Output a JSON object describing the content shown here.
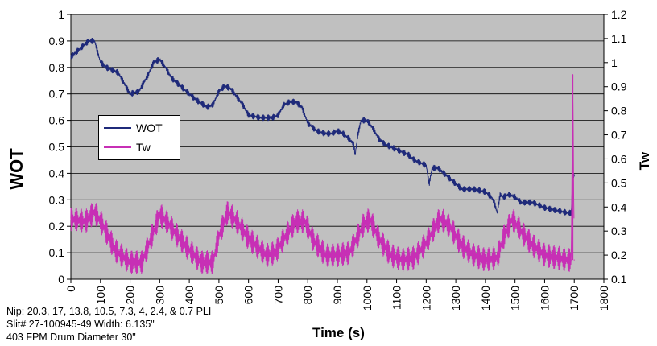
{
  "chart_data": {
    "type": "line",
    "title": "",
    "xlabel": "Time (s)",
    "ylabel": "WOT",
    "y2label": "Tw",
    "xlim": [
      0,
      1800
    ],
    "ylim": [
      0,
      1
    ],
    "y2lim": [
      0.1,
      1.2
    ],
    "x_ticks": [
      "0",
      "100",
      "200",
      "300",
      "400",
      "500",
      "600",
      "700",
      "800",
      "900",
      "1000",
      "1100",
      "1200",
      "1300",
      "1400",
      "1500",
      "1600",
      "1700",
      "1800"
    ],
    "y_ticks": [
      "0",
      "0.1",
      "0.2",
      "0.3",
      "0.4",
      "0.5",
      "0.6",
      "0.7",
      "0.8",
      "0.9",
      "1"
    ],
    "y2_ticks": [
      "0.1",
      "0.2",
      "0.3",
      "0.4",
      "0.5",
      "0.6",
      "0.7",
      "0.8",
      "0.9",
      "1",
      "1.1",
      "1.2"
    ],
    "grid": true,
    "legend_position": "left-middle",
    "series": [
      {
        "name": "WOT",
        "axis": "left",
        "color": "#1f2a7a",
        "x": [
          0,
          20,
          40,
          60,
          80,
          100,
          120,
          140,
          160,
          180,
          200,
          230,
          260,
          280,
          300,
          320,
          340,
          360,
          380,
          420,
          460,
          480,
          500,
          520,
          540,
          560,
          580,
          600,
          640,
          680,
          700,
          720,
          740,
          760,
          780,
          800,
          830,
          860,
          880,
          900,
          920,
          940,
          955,
          960,
          970,
          980,
          1000,
          1020,
          1040,
          1060,
          1080,
          1100,
          1140,
          1160,
          1180,
          1200,
          1210,
          1220,
          1240,
          1280,
          1300,
          1320,
          1360,
          1400,
          1420,
          1430,
          1440,
          1450,
          1460,
          1480,
          1500,
          1520,
          1560,
          1600,
          1640,
          1680,
          1690,
          1695,
          1700
        ],
        "y": [
          0.84,
          0.86,
          0.88,
          0.9,
          0.9,
          0.82,
          0.8,
          0.79,
          0.78,
          0.74,
          0.7,
          0.71,
          0.77,
          0.82,
          0.83,
          0.8,
          0.76,
          0.74,
          0.72,
          0.68,
          0.65,
          0.66,
          0.71,
          0.73,
          0.72,
          0.69,
          0.66,
          0.62,
          0.61,
          0.61,
          0.62,
          0.66,
          0.67,
          0.67,
          0.65,
          0.59,
          0.56,
          0.55,
          0.55,
          0.56,
          0.55,
          0.53,
          0.51,
          0.47,
          0.55,
          0.6,
          0.6,
          0.57,
          0.53,
          0.51,
          0.5,
          0.49,
          0.47,
          0.45,
          0.44,
          0.43,
          0.36,
          0.42,
          0.42,
          0.38,
          0.36,
          0.34,
          0.34,
          0.33,
          0.31,
          0.29,
          0.25,
          0.32,
          0.31,
          0.32,
          0.31,
          0.29,
          0.29,
          0.27,
          0.26,
          0.25,
          0.25,
          0.39,
          0.39
        ]
      },
      {
        "name": "Tw",
        "axis": "right",
        "color": "#c72fb5",
        "x": [
          0,
          50,
          80,
          110,
          150,
          200,
          240,
          280,
          300,
          330,
          360,
          400,
          440,
          480,
          500,
          530,
          560,
          600,
          660,
          690,
          720,
          760,
          790,
          820,
          860,
          900,
          940,
          990,
          1010,
          1040,
          1080,
          1120,
          1160,
          1200,
          1240,
          1250,
          1280,
          1320,
          1360,
          1400,
          1440,
          1460,
          1490,
          1520,
          1560,
          1600,
          1640,
          1680,
          1690,
          1695,
          1700
        ],
        "y": [
          0.35,
          0.34,
          0.38,
          0.32,
          0.22,
          0.17,
          0.17,
          0.3,
          0.37,
          0.33,
          0.28,
          0.22,
          0.17,
          0.17,
          0.28,
          0.38,
          0.34,
          0.27,
          0.2,
          0.21,
          0.27,
          0.34,
          0.34,
          0.26,
          0.2,
          0.2,
          0.21,
          0.33,
          0.35,
          0.27,
          0.2,
          0.18,
          0.19,
          0.25,
          0.34,
          0.35,
          0.32,
          0.24,
          0.2,
          0.18,
          0.19,
          0.27,
          0.35,
          0.3,
          0.24,
          0.2,
          0.19,
          0.18,
          0.18,
          0.95,
          0.18
        ]
      }
    ],
    "annotations": [
      "Nip: 20.3, 17, 13.8, 10.5, 7.3, 4, 2.4, & 0.7 PLI",
      "Slit# 27-100945-49 Width: 6.135\"",
      "403 FPM Drum Diameter 30\""
    ]
  }
}
